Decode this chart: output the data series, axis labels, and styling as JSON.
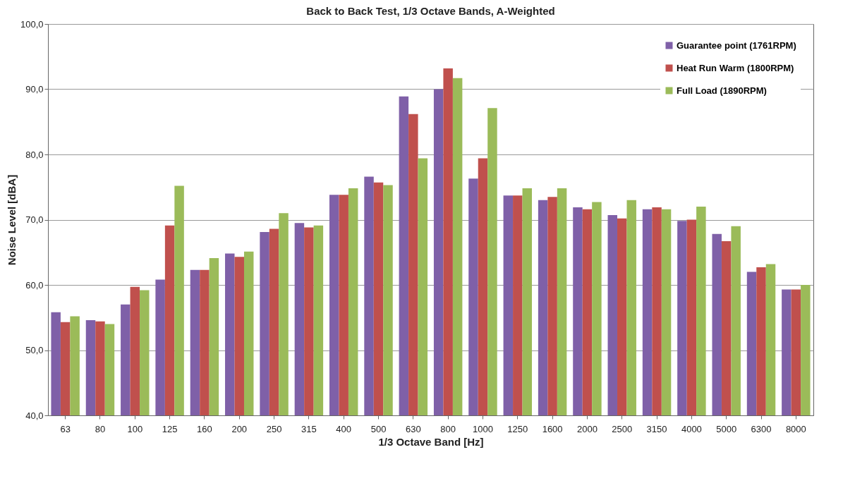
{
  "chart_data": {
    "type": "bar",
    "title": "Back to Back Test, 1/3 Octave Bands, A-Weighted",
    "xlabel": "1/3 Octave Band [Hz]",
    "ylabel": "Noise Level [dBA]",
    "categories": [
      "63",
      "80",
      "100",
      "125",
      "160",
      "200",
      "250",
      "315",
      "400",
      "500",
      "630",
      "800",
      "1000",
      "1250",
      "1600",
      "2000",
      "2500",
      "3150",
      "4000",
      "5000",
      "6300",
      "8000"
    ],
    "series": [
      {
        "name": "Guarantee point (1761RPM)",
        "color": "#7f60a8",
        "values": [
          55.8,
          54.6,
          57.0,
          60.8,
          62.3,
          64.8,
          68.1,
          69.5,
          73.8,
          76.6,
          88.9,
          90.0,
          76.3,
          73.7,
          73.0,
          71.9,
          70.7,
          71.6,
          69.8,
          67.8,
          62.0,
          59.3
        ]
      },
      {
        "name": "Heat Run Warm (1800RPM)",
        "color": "#c0504d",
        "values": [
          54.3,
          54.4,
          59.7,
          69.1,
          62.3,
          64.3,
          68.6,
          68.8,
          73.8,
          75.7,
          86.2,
          93.2,
          79.4,
          73.7,
          73.5,
          71.6,
          70.2,
          71.9,
          70.0,
          66.7,
          62.7,
          59.3
        ]
      },
      {
        "name": "Full Load (1890RPM)",
        "color": "#9bbb59",
        "values": [
          55.2,
          54.0,
          59.2,
          75.2,
          64.1,
          65.1,
          71.0,
          69.1,
          74.8,
          75.3,
          79.4,
          91.7,
          87.1,
          74.8,
          74.8,
          72.7,
          73.0,
          71.6,
          72.0,
          69.0,
          63.2,
          60.0
        ]
      }
    ],
    "ylim": [
      40,
      100
    ],
    "yticks": [
      {
        "value": 40,
        "label": "40,0"
      },
      {
        "value": 50,
        "label": "50,0"
      },
      {
        "value": 60,
        "label": "60,0"
      },
      {
        "value": 70,
        "label": "70,0"
      },
      {
        "value": 80,
        "label": "80,0"
      },
      {
        "value": 90,
        "label": "90,0"
      },
      {
        "value": 100,
        "label": "100,0"
      }
    ],
    "grid": "y",
    "legend": "top right"
  }
}
